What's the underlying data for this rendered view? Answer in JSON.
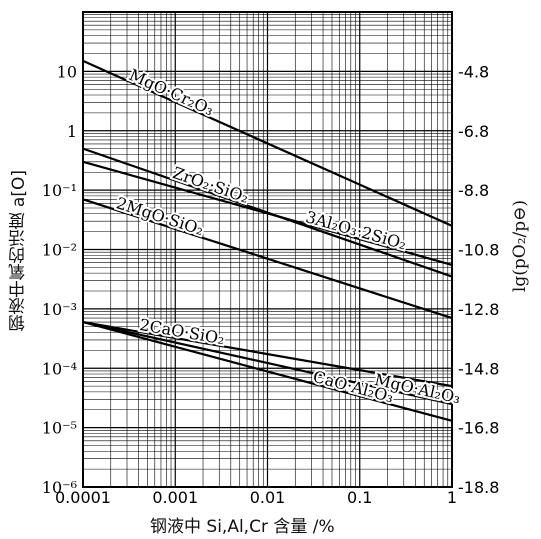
{
  "chart_data": {
    "type": "line",
    "xscale": "log",
    "yscale": "log",
    "xlim": [
      0.0001,
      1
    ],
    "ylim": [
      1e-06,
      100
    ],
    "x_ticks": [
      "0.0001",
      "0.001",
      "0.01",
      "0.1",
      "1"
    ],
    "y_ticks_left": [
      "10⁻⁶",
      "10⁻⁵",
      "10⁻⁴",
      "10⁻³",
      "10⁻²",
      "10⁻¹",
      "1",
      "10"
    ],
    "y_ticks_right": [
      "-4.8",
      "-6.8",
      "-8.8",
      "-10.8",
      "-12.8",
      "-14.8",
      "-16.8",
      "-18.8"
    ],
    "xlabel": "钢液中 Si,Al,Cr 含量 /%",
    "ylabel_left": "钢液中氧的活度 a[O]",
    "ylabel_right": "lg(pO₂/p⊖)",
    "grid": true,
    "series": [
      {
        "name": "MgO·Cr₂O₃",
        "x": [
          0.0001,
          1
        ],
        "y": [
          15,
          0.025
        ]
      },
      {
        "name": "ZrO₂·SiO₂",
        "x": [
          0.0001,
          1
        ],
        "y": [
          0.5,
          0.0035
        ]
      },
      {
        "name": "3Al₂O₃·2SiO₂",
        "x": [
          0.0001,
          1
        ],
        "y": [
          0.3,
          0.0055
        ]
      },
      {
        "name": "2MgO·SiO₂",
        "x": [
          0.0001,
          1
        ],
        "y": [
          0.07,
          0.0007
        ]
      },
      {
        "name": "2CaO·SiO₂",
        "x": [
          0.0001,
          1
        ],
        "y": [
          0.0006,
          5e-05
        ]
      },
      {
        "name": "MgO·Al₂O₃",
        "x": [
          0.0001,
          1
        ],
        "y": [
          0.0006,
          2.5e-05
        ]
      },
      {
        "name": "CaO·Al₂O₃",
        "x": [
          0.0001,
          1
        ],
        "y": [
          0.0006,
          1.3e-05
        ]
      }
    ]
  }
}
